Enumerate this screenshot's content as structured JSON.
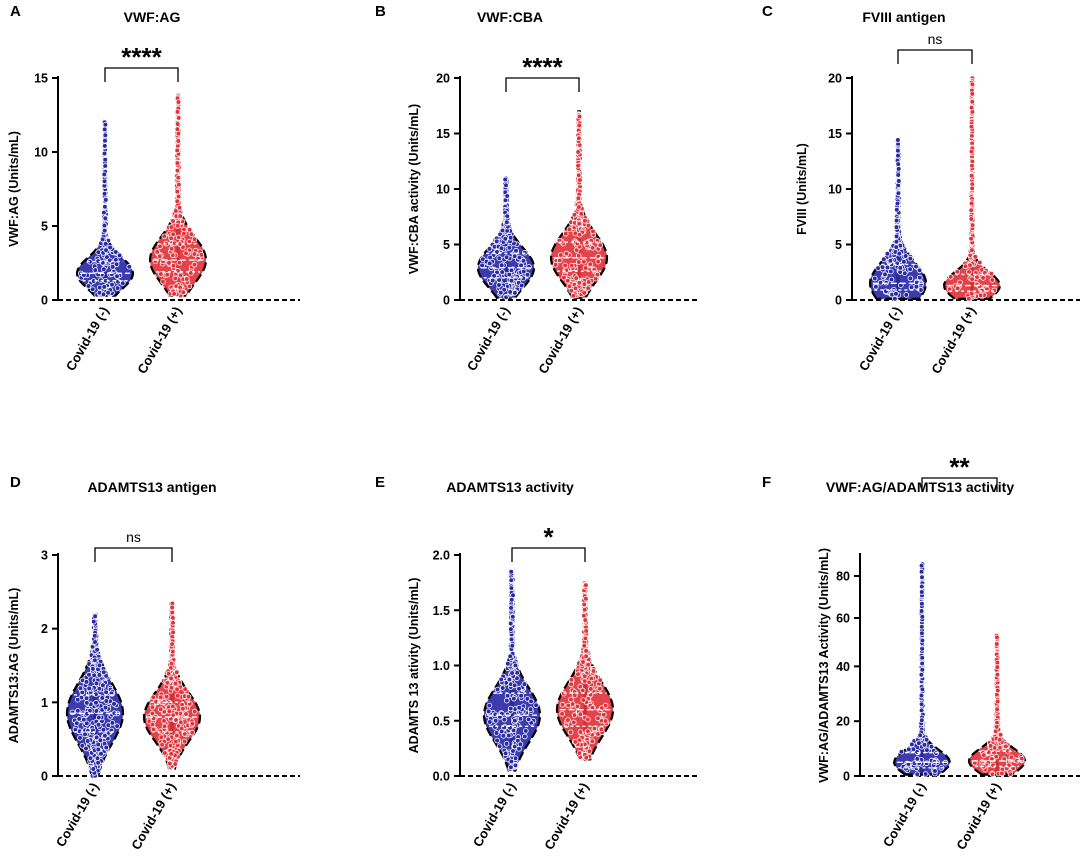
{
  "colors": {
    "negative": "#2a2aa6",
    "positive": "#e0343c",
    "axis": "#000000",
    "median_line": "#ffffff"
  },
  "chart_data": [
    {
      "panel": "A",
      "type": "violin",
      "title": "VWF:AG",
      "ylabel": "VWF:AG (Units/mL)",
      "ylim": [
        0,
        15
      ],
      "yticks": [
        "0",
        "5",
        "10",
        "15"
      ],
      "ytick_values": [
        0,
        5,
        10,
        15
      ],
      "categories": [
        "Covid-19 (-)",
        "Covid-19 (+)"
      ],
      "series": [
        {
          "name": "Covid-19 (-)",
          "min": 0.3,
          "q1": 1.3,
          "median": 1.8,
          "q3": 2.6,
          "max": 12.1
        },
        {
          "name": "Covid-19 (+)",
          "min": 0.3,
          "q1": 1.9,
          "median": 2.7,
          "q3": 3.8,
          "max": 13.9
        }
      ],
      "significance": "****"
    },
    {
      "panel": "B",
      "type": "violin",
      "title": "VWF:CBA",
      "ylabel": "VWF:CBA activity (Units/mL)",
      "ylim": [
        0,
        20
      ],
      "yticks": [
        "0",
        "5",
        "10",
        "15",
        "20"
      ],
      "ytick_values": [
        0,
        5,
        10,
        15,
        20
      ],
      "categories": [
        "Covid-19 (-)",
        "Covid-19 (+)"
      ],
      "series": [
        {
          "name": "Covid-19 (-)",
          "min": 0.2,
          "q1": 2.0,
          "median": 2.9,
          "q3": 4.2,
          "max": 11.0
        },
        {
          "name": "Covid-19 (+)",
          "min": 0.2,
          "q1": 2.6,
          "median": 3.8,
          "q3": 5.2,
          "max": 17.0
        }
      ],
      "significance": "****"
    },
    {
      "panel": "C",
      "type": "violin",
      "title": "FVIII antigen",
      "ylabel": "FVIII (Units/mL)",
      "ylim": [
        0,
        20
      ],
      "yticks": [
        "0",
        "5",
        "10",
        "15",
        "20"
      ],
      "ytick_values": [
        0,
        5,
        10,
        15,
        20
      ],
      "categories": [
        "Covid-19 (-)",
        "Covid-19 (+)"
      ],
      "series": [
        {
          "name": "Covid-19 (-)",
          "min": 0.1,
          "q1": 0.9,
          "median": 1.5,
          "q3": 3.2,
          "max": 14.5
        },
        {
          "name": "Covid-19 (+)",
          "min": 0.1,
          "q1": 0.8,
          "median": 1.3,
          "q3": 2.3,
          "max": 20.0
        }
      ],
      "significance": "ns"
    },
    {
      "panel": "D",
      "type": "violin",
      "title": "ADAMTS13 antigen",
      "ylabel": "ADAMTS13:AG (Units/mL)",
      "ylim": [
        0,
        3
      ],
      "yticks": [
        "0",
        "1",
        "2",
        "3"
      ],
      "ytick_values": [
        0,
        1,
        2,
        3
      ],
      "categories": [
        "Covid-19 (-)",
        "Covid-19 (+)"
      ],
      "series": [
        {
          "name": "Covid-19 (-)",
          "min": 0.0,
          "q1": 0.6,
          "median": 0.85,
          "q3": 1.1,
          "max": 2.2
        },
        {
          "name": "Covid-19 (+)",
          "min": 0.1,
          "q1": 0.6,
          "median": 0.8,
          "q3": 1.0,
          "max": 2.35
        }
      ],
      "significance": "ns"
    },
    {
      "panel": "E",
      "type": "violin",
      "title": "ADAMTS13 activity",
      "ylabel": "ADAMTS 13 ativity (Units/mL)",
      "ylim": [
        0,
        2.0
      ],
      "yticks": [
        "0.0",
        "0.5",
        "1.0",
        "1.5",
        "2.0"
      ],
      "ytick_values": [
        0,
        0.5,
        1.0,
        1.5,
        2.0
      ],
      "categories": [
        "Covid-19 (-)",
        "Covid-19 (+)"
      ],
      "series": [
        {
          "name": "Covid-19 (-)",
          "min": 0.05,
          "q1": 0.45,
          "median": 0.55,
          "q3": 0.75,
          "max": 1.85
        },
        {
          "name": "Covid-19 (+)",
          "min": 0.15,
          "q1": 0.45,
          "median": 0.6,
          "q3": 0.75,
          "max": 1.75
        }
      ],
      "significance": "*"
    },
    {
      "panel": "F",
      "type": "violin",
      "title": "VWF:AG/ADAMTS13 activity",
      "ylabel": "VWF:AG/ADAMTS13 Activity  (Units/mL)",
      "ylim": [
        0,
        90
      ],
      "yticks": [
        "0",
        "20",
        "40",
        "60",
        "80"
      ],
      "ytick_values": [
        0,
        20,
        40,
        60,
        80
      ],
      "categories": [
        "Covid-19 (-)",
        "Covid-19 (+)"
      ],
      "series": [
        {
          "name": "Covid-19 (-)",
          "min": 0.5,
          "q1": 3.0,
          "median": 5.0,
          "q3": 8.5,
          "max": 86.0
        },
        {
          "name": "Covid-19 (+)",
          "min": 0.5,
          "q1": 3.5,
          "median": 5.5,
          "q3": 9.0,
          "max": 52.0
        }
      ],
      "significance": "**"
    }
  ]
}
